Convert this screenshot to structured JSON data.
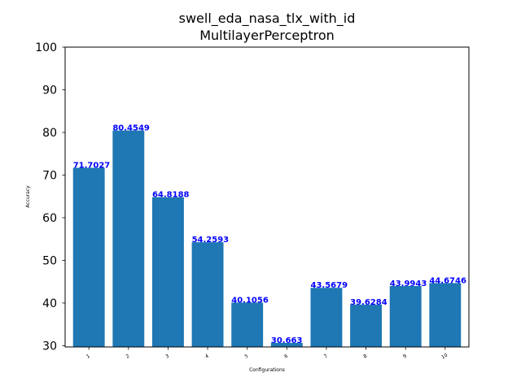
{
  "chart_data": {
    "type": "bar",
    "title": "swell_eda_nasa_tlx_with_id",
    "subtitle": "MultilayerPerceptron",
    "xlabel": "Configurations",
    "ylabel": "Accuracy",
    "categories": [
      "1",
      "2",
      "3",
      "4",
      "5",
      "6",
      "7",
      "8",
      "9",
      "10"
    ],
    "values": [
      71.7027,
      80.4549,
      64.8188,
      54.2593,
      40.1056,
      30.663,
      43.5679,
      39.6284,
      43.9943,
      44.6746
    ],
    "value_labels": [
      "71.7027",
      "80.4549",
      "64.8188",
      "54.2593",
      "40.1056",
      "30.663",
      "43.5679",
      "39.6284",
      "43.9943",
      "44.6746"
    ],
    "ylim": [
      29.7,
      100
    ],
    "yticks": [
      "30",
      "40",
      "50",
      "60",
      "70",
      "80",
      "90",
      "100"
    ],
    "grid": false,
    "legend": "none",
    "bar_color": "#1f77b4",
    "label_color": "#0000ff"
  }
}
